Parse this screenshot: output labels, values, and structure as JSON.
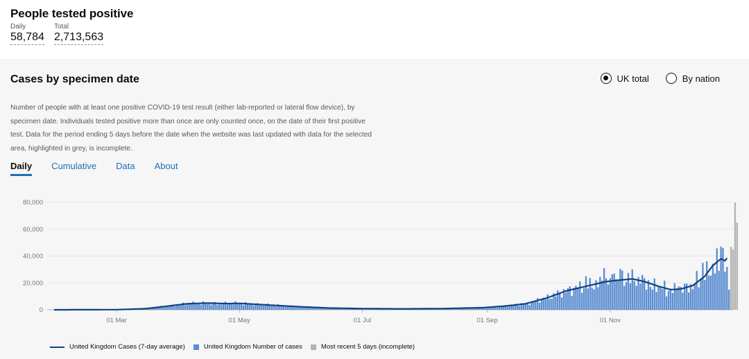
{
  "headline": {
    "title": "People tested positive",
    "daily_label": "Daily",
    "daily_value": "58,784",
    "total_label": "Total",
    "total_value": "2,713,563"
  },
  "card": {
    "title": "Cases by specimen date",
    "radio_uk": "UK total",
    "radio_nation": "By nation",
    "selected_radio": "UK total",
    "description": "Number of people with at least one positive COVID-19 test result (either lab-reported or lateral flow device), by specimen date. Individuals tested positive more than once are only counted once, on the date of their first positive test. Data for the period ending 5 days before the date when the website was last updated with data for the selected area, highlighted in grey, is incomplete.",
    "tabs": [
      "Daily",
      "Cumulative",
      "Data",
      "About"
    ],
    "active_tab": "Daily"
  },
  "colors": {
    "bar": "#5b8dd1",
    "line": "#12407f",
    "incomplete": "#b3b3b3",
    "tab_link": "#1d70b8"
  },
  "chart_data": {
    "type": "bar",
    "x_range": [
      "2020-01-30",
      "2021-01-01"
    ],
    "ylim": [
      0,
      80000
    ],
    "y_ticks": [
      "0",
      "20,000",
      "40,000",
      "60,000",
      "80,000"
    ],
    "x_ticks": [
      "01 Mar",
      "01 May",
      "01 Jul",
      "01 Sep",
      "01 Nov"
    ],
    "grid": true,
    "legend_position": "bottom-left",
    "series": [
      {
        "name": "United Kingdom Cases (7-day average)",
        "kind": "line"
      },
      {
        "name": "United Kingdom Number of cases",
        "kind": "bar"
      },
      {
        "name": "Most recent 5 days (incomplete)",
        "kind": "bar"
      }
    ],
    "trend": [
      [
        "2020-01-30",
        0
      ],
      [
        "2020-03-01",
        100
      ],
      [
        "2020-03-15",
        800
      ],
      [
        "2020-03-25",
        2500
      ],
      [
        "2020-04-05",
        4500
      ],
      [
        "2020-04-15",
        5000
      ],
      [
        "2020-04-25",
        4600
      ],
      [
        "2020-05-01",
        4800
      ],
      [
        "2020-05-15",
        3600
      ],
      [
        "2020-06-01",
        2200
      ],
      [
        "2020-06-15",
        1300
      ],
      [
        "2020-07-01",
        900
      ],
      [
        "2020-07-20",
        700
      ],
      [
        "2020-08-10",
        900
      ],
      [
        "2020-08-30",
        1600
      ],
      [
        "2020-09-10",
        2800
      ],
      [
        "2020-09-20",
        4500
      ],
      [
        "2020-10-01",
        9000
      ],
      [
        "2020-10-10",
        14000
      ],
      [
        "2020-10-20",
        17500
      ],
      [
        "2020-10-30",
        21000
      ],
      [
        "2020-11-05",
        22000
      ],
      [
        "2020-11-12",
        23000
      ],
      [
        "2020-11-18",
        21000
      ],
      [
        "2020-11-25",
        17500
      ],
      [
        "2020-12-01",
        15000
      ],
      [
        "2020-12-06",
        15500
      ],
      [
        "2020-12-12",
        18000
      ],
      [
        "2020-12-18",
        25000
      ],
      [
        "2020-12-22",
        33000
      ],
      [
        "2020-12-26",
        38000
      ],
      [
        "2020-12-28",
        36500
      ],
      [
        "2020-12-29",
        38500
      ]
    ],
    "bars_complete": [
      [
        "2020-10-15",
        18000
      ],
      [
        "2020-10-20",
        25000
      ],
      [
        "2020-10-25",
        22000
      ],
      [
        "2020-10-29",
        31000
      ],
      [
        "2020-11-03",
        27000
      ],
      [
        "2020-11-06",
        30500
      ],
      [
        "2020-11-10",
        27500
      ],
      [
        "2020-11-16",
        19500
      ],
      [
        "2020-11-22",
        15000
      ],
      [
        "2020-11-29",
        10000
      ],
      [
        "2020-12-05",
        17500
      ],
      [
        "2020-12-14",
        29000
      ],
      [
        "2020-12-17",
        35000
      ],
      [
        "2020-12-21",
        25500
      ],
      [
        "2020-12-25",
        29000
      ],
      [
        "2020-12-26",
        47000
      ],
      [
        "2020-12-27",
        46000
      ],
      [
        "2020-12-29",
        32000
      ],
      [
        "2020-12-30",
        15000
      ]
    ],
    "bars_incomplete": [
      [
        "2020-12-31",
        47000
      ],
      [
        "2021-01-01",
        45000
      ],
      [
        "2021-01-02",
        80000
      ],
      [
        "2021-01-03",
        65000
      ]
    ]
  }
}
